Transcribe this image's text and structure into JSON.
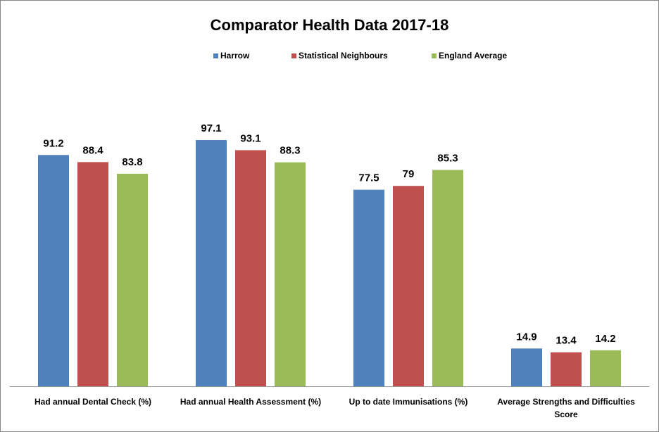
{
  "chart_data": {
    "type": "bar",
    "title": "Comparator Health Data 2017-18",
    "categories": [
      "Had annual Dental Check (%)",
      "Had annual Health Assessment (%)",
      "Up to date Immunisations  (%)",
      "Average Strengths and Difficulties Score"
    ],
    "series": [
      {
        "name": "Harrow",
        "color": "#4f81bd",
        "values": [
          91.2,
          97.1,
          77.5,
          14.9
        ]
      },
      {
        "name": "Statistical Neighbours",
        "color": "#c0504d",
        "values": [
          88.4,
          93.1,
          79,
          13.4
        ]
      },
      {
        "name": "England Average",
        "color": "#9bbb59",
        "values": [
          83.8,
          88.3,
          85.3,
          14.2
        ]
      }
    ],
    "ylim": [
      0,
      120
    ],
    "legend": "top"
  }
}
